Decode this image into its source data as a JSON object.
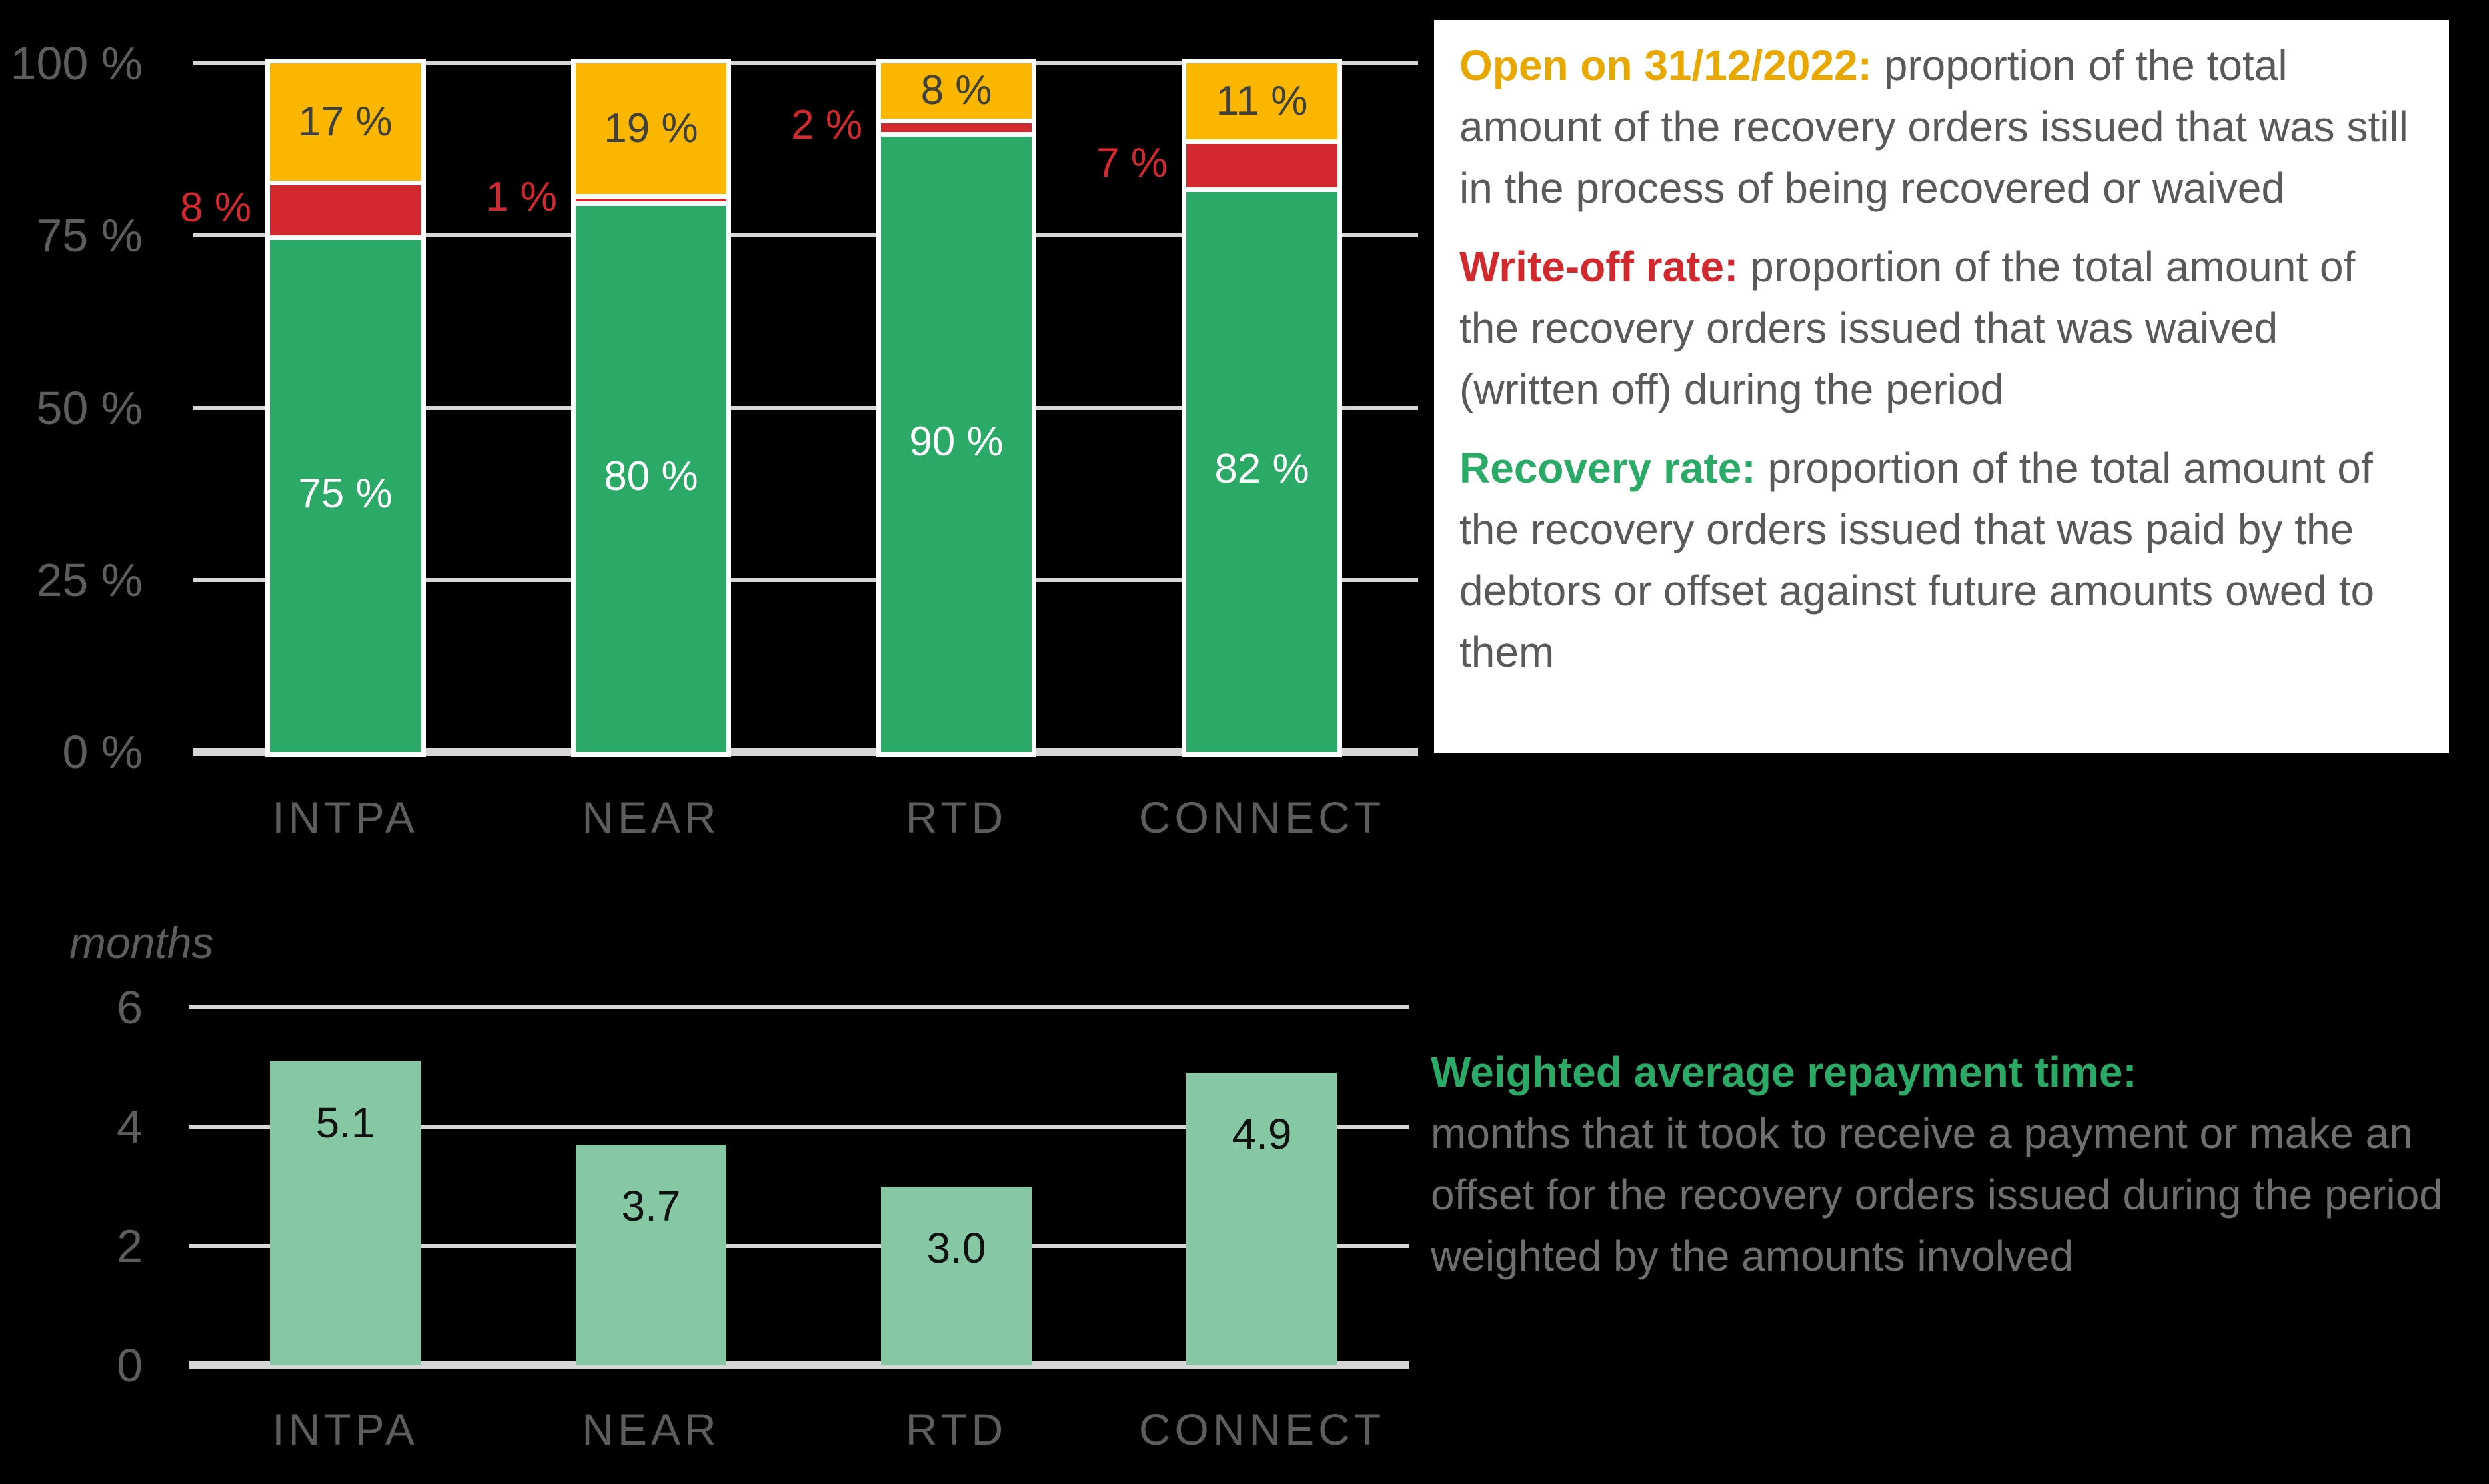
{
  "colors": {
    "background": "#000000",
    "recovery_green": "#2BA966",
    "repayment_light_green": "#85C8A3",
    "writeoff_red": "#D2292E",
    "open_yellow": "#FBB600",
    "heading_yellow": "#E9A800",
    "axis_grey": "#5C5D5F",
    "legend_grey": "#58595B",
    "legend_grey_on_black": "#6E6F71",
    "gridline_grey": "#D6D6D6",
    "segment_border_white": "#FFFFFF",
    "yellow_label_dark": "#3F4040"
  },
  "chart_data": [
    {
      "type": "bar",
      "subtype": "stacked-vertical",
      "categories": [
        "INTPA",
        "NEAR",
        "RTD",
        "CONNECT"
      ],
      "series": [
        {
          "name": "Recovery rate",
          "color": "#2BA966",
          "values": [
            75,
            80,
            90,
            82
          ],
          "labels": [
            "75 %",
            "80 %",
            "90 %",
            "82 %"
          ],
          "label_color": "#FFFFFF",
          "label_placement": "inside-center"
        },
        {
          "name": "Write-off rate",
          "color": "#D2292E",
          "values": [
            8,
            1,
            2,
            7
          ],
          "labels": [
            "8 %",
            "1 %",
            "2 %",
            "7 %"
          ],
          "label_color": "#D2292E",
          "label_placement": "outside-left"
        },
        {
          "name": "Open on 31/12/2022",
          "color": "#FBB600",
          "values": [
            17,
            19,
            8,
            11
          ],
          "labels": [
            "17 %",
            "19 %",
            "8 %",
            "11 %"
          ],
          "label_color": "#3F4040",
          "label_placement": "inside-center"
        }
      ],
      "ylim": [
        0,
        100
      ],
      "y_ticks": [
        {
          "v": 100,
          "label": "100 %"
        },
        {
          "v": 75,
          "label": "75 %"
        },
        {
          "v": 50,
          "label": "50 %"
        },
        {
          "v": 25,
          "label": "25 %"
        },
        {
          "v": 0,
          "label": "0 %"
        }
      ],
      "grid": true,
      "xlabel": "",
      "ylabel": "",
      "title": ""
    },
    {
      "type": "bar",
      "subtype": "simple-vertical",
      "categories": [
        "INTPA",
        "NEAR",
        "RTD",
        "CONNECT"
      ],
      "values": [
        5.1,
        3.7,
        3.0,
        4.9
      ],
      "labels": [
        "5.1",
        "3.7",
        "3.0",
        "4.9"
      ],
      "color": "#85C8A3",
      "ylabel": "months",
      "ylim": [
        0,
        6
      ],
      "y_ticks": [
        {
          "v": 6,
          "label": "6"
        },
        {
          "v": 4,
          "label": "4"
        },
        {
          "v": 2,
          "label": "2"
        },
        {
          "v": 0,
          "label": "0"
        }
      ],
      "grid": true,
      "title": ""
    }
  ],
  "top_axis": {
    "x_categories": [
      "INTPA",
      "NEAR",
      "RTD",
      "CONNECT"
    ]
  },
  "bottom_axis": {
    "ylabel": "months",
    "x_categories": [
      "INTPA",
      "NEAR",
      "RTD",
      "CONNECT"
    ]
  },
  "legend_top": {
    "items": [
      {
        "heading": "Open on 31/12/2022:",
        "body": "proportion of the total amount of the recovery orders issued that was still in the process of being recovered or waived"
      },
      {
        "heading": "Write-off rate:",
        "body": "proportion of the total amount of the recovery orders issued that was waived (written off) during the period"
      },
      {
        "heading": "Recovery rate:",
        "body": "proportion of the total amount of the recovery orders issued that was paid by the debtors or offset against future amounts owed to them"
      }
    ]
  },
  "legend_bottom": {
    "heading": "Weighted average repayment time:",
    "body": "months that it took to receive a payment or make an offset for the recovery orders issued during the period weighted by the amounts involved"
  }
}
